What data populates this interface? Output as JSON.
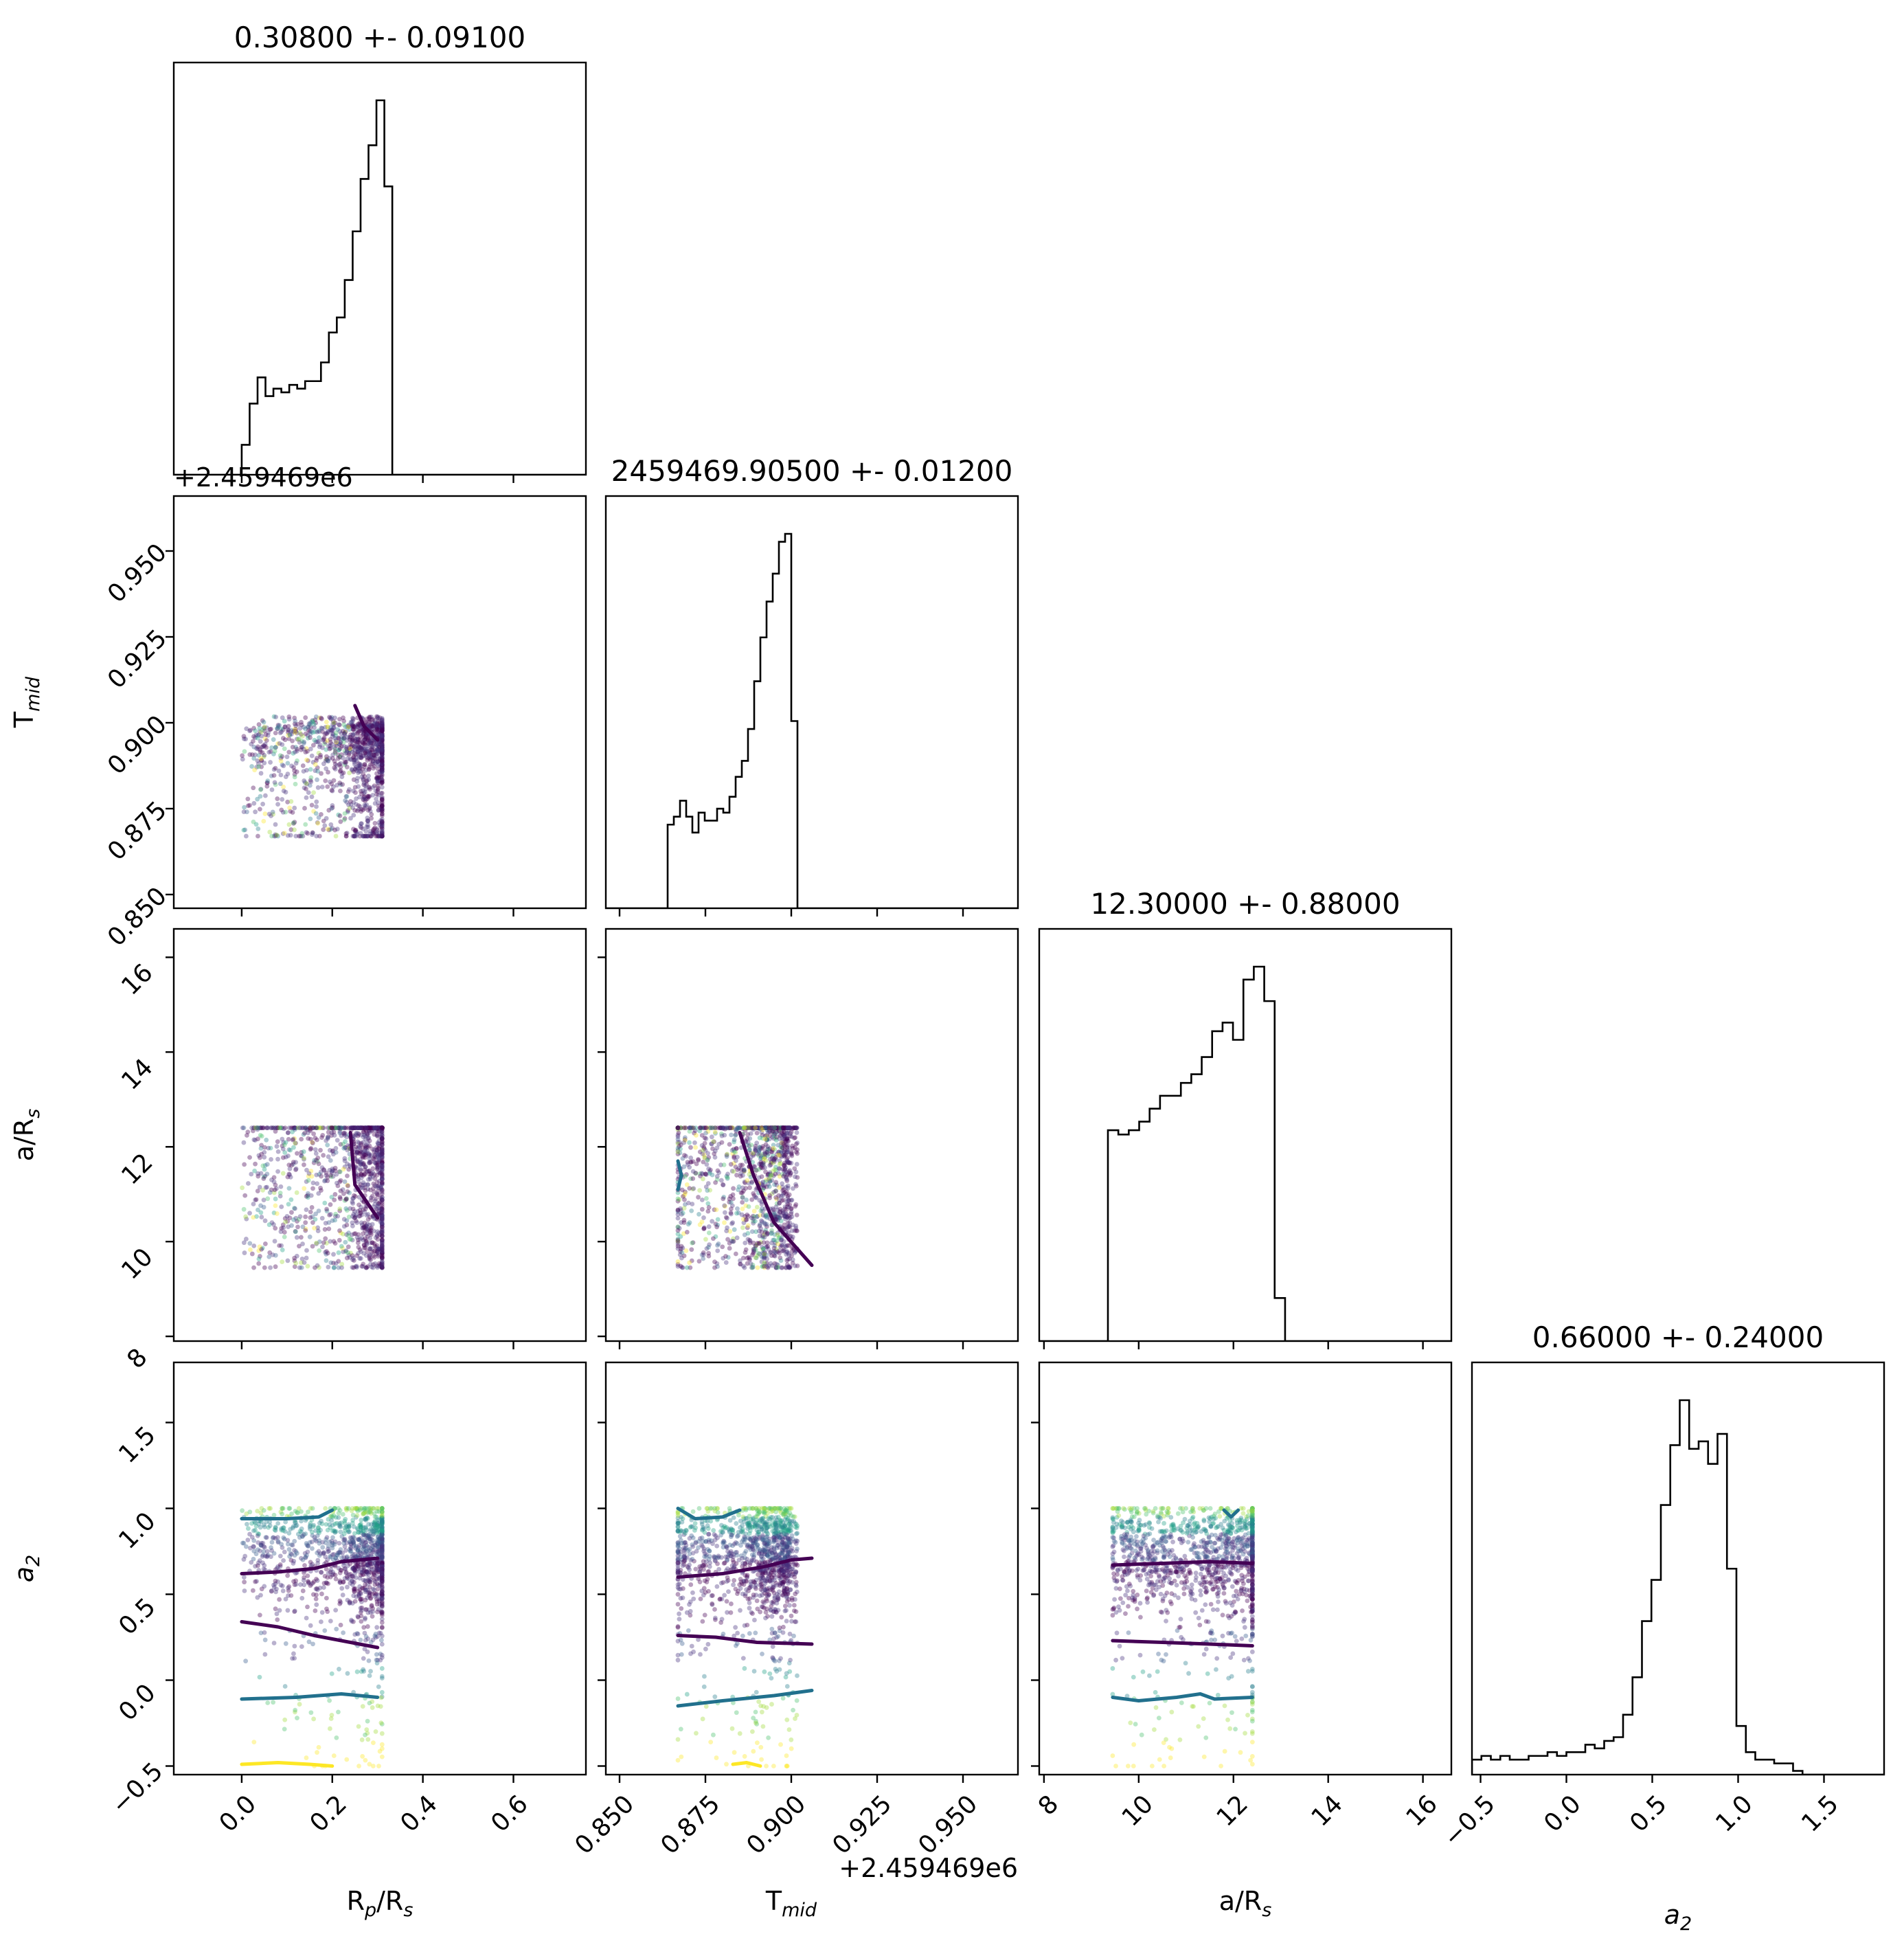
{
  "chart_data": {
    "type": "corner",
    "parameters": [
      {
        "label": "R",
        "label_sub": "p",
        "label_tail": "/R",
        "label_sub2": "s",
        "range": [
          -0.15,
          0.76
        ],
        "ticks": [
          0.0,
          0.2,
          0.4,
          0.6
        ],
        "tick_labels": [
          "0.0",
          "0.2",
          "0.4",
          "0.6"
        ]
      },
      {
        "label": "T",
        "label_sub": "mid",
        "label_tail": "",
        "label_sub2": "",
        "range": [
          0.846,
          0.966
        ],
        "ticks": [
          0.85,
          0.875,
          0.9,
          0.925,
          0.95
        ],
        "tick_labels": [
          "0.850",
          "0.875",
          "0.900",
          "0.925",
          "0.950"
        ],
        "offset_text": "+2.459469e6"
      },
      {
        "label": "a/R",
        "label_sub": "s",
        "label_tail": "",
        "label_sub2": "",
        "range": [
          7.9,
          16.6
        ],
        "ticks": [
          8,
          10,
          12,
          14,
          16
        ],
        "tick_labels": [
          "8",
          "10",
          "12",
          "14",
          "16"
        ]
      },
      {
        "label": "a",
        "label_sub": "2",
        "label_tail": "",
        "label_sub2": "",
        "italic": true,
        "range": [
          -0.55,
          1.85
        ],
        "ticks": [
          -0.5,
          0.0,
          0.5,
          1.0,
          1.5
        ],
        "tick_labels": [
          "−0.5",
          "0.0",
          "0.5",
          "1.0",
          "1.5"
        ]
      }
    ],
    "titles": [
      "0.30800 +- 0.09100",
      "2459469.90500 +- 0.01200",
      "12.30000 +- 0.88000",
      "0.66000 +- 0.24000"
    ],
    "histograms": [
      {
        "param": 0,
        "bin_width": 0.0175,
        "bins_start": -0.0175,
        "counts": [
          0,
          0.08,
          0.19,
          0.26,
          0.21,
          0.23,
          0.22,
          0.24,
          0.23,
          0.25,
          0.25,
          0.3,
          0.38,
          0.42,
          0.52,
          0.65,
          0.79,
          0.88,
          1.0,
          0.77,
          0
        ]
      },
      {
        "param": 1,
        "bin_width": 0.0018,
        "bins_start": 0.864,
        "counts": [
          0.21,
          0.23,
          0.27,
          0.23,
          0.19,
          0.24,
          0.22,
          0.22,
          0.25,
          0.24,
          0.28,
          0.33,
          0.37,
          0.45,
          0.57,
          0.68,
          0.77,
          0.84,
          0.92,
          0.94,
          0.47
        ]
      },
      {
        "param": 2,
        "bin_width": 0.22,
        "bins_start": 9.35,
        "counts": [
          0.49,
          0.48,
          0.49,
          0.51,
          0.54,
          0.57,
          0.57,
          0.6,
          0.62,
          0.66,
          0.72,
          0.74,
          0.7,
          0.84,
          0.87,
          0.79,
          0.1
        ]
      },
      {
        "param": 3,
        "bin_width": 0.055,
        "bins_start": -0.55,
        "counts": [
          0.04,
          0.05,
          0.04,
          0.05,
          0.04,
          0.04,
          0.05,
          0.05,
          0.06,
          0.05,
          0.06,
          0.06,
          0.08,
          0.07,
          0.09,
          0.1,
          0.16,
          0.26,
          0.41,
          0.52,
          0.72,
          0.88,
          1.0,
          0.87,
          0.89,
          0.83,
          0.91,
          0.55,
          0.13,
          0.06,
          0.04,
          0.04,
          0.03,
          0.03,
          0.01,
          0
        ]
      }
    ],
    "scatter": {
      "n_points": 1300,
      "ranges": [
        [
          0.0,
          0.31
        ],
        [
          0.867,
          0.906
        ],
        [
          9.45,
          12.4
        ],
        [
          -0.5,
          1.0
        ]
      ],
      "point_colors": [
        "#440154",
        "#46327e",
        "#365c8d",
        "#277f8e",
        "#1fa187",
        "#4ac16d",
        "#a0da39",
        "#fde725"
      ],
      "dense_color": "#440154"
    },
    "contours": [
      {
        "row": 3,
        "col": 0,
        "color": "#440154",
        "lines": [
          [
            [
              0.0,
              0.62
            ],
            [
              0.08,
              0.63
            ],
            [
              0.16,
              0.65
            ],
            [
              0.22,
              0.69
            ],
            [
              0.3,
              0.71
            ]
          ],
          [
            [
              0.0,
              0.34
            ],
            [
              0.08,
              0.31
            ],
            [
              0.16,
              0.26
            ],
            [
              0.24,
              0.22
            ],
            [
              0.3,
              0.19
            ]
          ]
        ]
      },
      {
        "row": 3,
        "col": 0,
        "color": "#21708d",
        "lines": [
          [
            [
              0.0,
              0.94
            ],
            [
              0.1,
              0.94
            ],
            [
              0.17,
              0.95
            ],
            [
              0.2,
              0.99
            ]
          ],
          [
            [
              0.0,
              -0.11
            ],
            [
              0.12,
              -0.1
            ],
            [
              0.22,
              -0.08
            ],
            [
              0.3,
              -0.1
            ]
          ]
        ]
      },
      {
        "row": 3,
        "col": 0,
        "color": "#fde725",
        "lines": [
          [
            [
              0.0,
              -0.49
            ],
            [
              0.08,
              -0.48
            ],
            [
              0.15,
              -0.49
            ],
            [
              0.2,
              -0.5
            ]
          ]
        ]
      },
      {
        "row": 3,
        "col": 1,
        "color": "#440154",
        "lines": [
          [
            [
              0.867,
              0.6
            ],
            [
              0.88,
              0.62
            ],
            [
              0.892,
              0.66
            ],
            [
              0.9,
              0.7
            ],
            [
              0.906,
              0.71
            ]
          ],
          [
            [
              0.867,
              0.26
            ],
            [
              0.878,
              0.25
            ],
            [
              0.89,
              0.22
            ],
            [
              0.906,
              0.21
            ]
          ]
        ]
      },
      {
        "row": 3,
        "col": 1,
        "color": "#21708d",
        "lines": [
          [
            [
              0.867,
              1.0
            ],
            [
              0.872,
              0.94
            ],
            [
              0.88,
              0.95
            ],
            [
              0.885,
              0.99
            ]
          ],
          [
            [
              0.867,
              -0.15
            ],
            [
              0.88,
              -0.12
            ],
            [
              0.895,
              -0.09
            ],
            [
              0.906,
              -0.06
            ]
          ]
        ]
      },
      {
        "row": 3,
        "col": 1,
        "color": "#fde725",
        "lines": [
          [
            [
              0.883,
              -0.49
            ],
            [
              0.887,
              -0.48
            ],
            [
              0.891,
              -0.5
            ]
          ]
        ]
      },
      {
        "row": 3,
        "col": 2,
        "color": "#440154",
        "lines": [
          [
            [
              9.45,
              0.67
            ],
            [
              10.5,
              0.68
            ],
            [
              11.5,
              0.69
            ],
            [
              12.4,
              0.68
            ]
          ],
          [
            [
              9.45,
              0.23
            ],
            [
              10.5,
              0.22
            ],
            [
              11.5,
              0.21
            ],
            [
              12.4,
              0.2
            ]
          ]
        ]
      },
      {
        "row": 3,
        "col": 2,
        "color": "#21708d",
        "lines": [
          [
            [
              9.45,
              -0.1
            ],
            [
              10.0,
              -0.12
            ],
            [
              10.8,
              -0.1
            ],
            [
              11.3,
              -0.08
            ],
            [
              11.6,
              -0.11
            ],
            [
              12.4,
              -0.1
            ]
          ],
          [
            [
              11.8,
              0.99
            ],
            [
              11.95,
              0.95
            ],
            [
              12.1,
              0.99
            ]
          ]
        ]
      },
      {
        "row": 2,
        "col": 1,
        "color": "#21708d",
        "lines": [
          [
            [
              0.867,
              11.7
            ],
            [
              0.868,
              11.4
            ],
            [
              0.867,
              11.1
            ]
          ]
        ]
      },
      {
        "row": 2,
        "col": 1,
        "color": "#440154",
        "lines": [
          [
            [
              0.885,
              12.3
            ],
            [
              0.889,
              11.4
            ],
            [
              0.895,
              10.4
            ],
            [
              0.906,
              9.5
            ]
          ]
        ]
      },
      {
        "row": 2,
        "col": 0,
        "color": "#440154",
        "lines": [
          [
            [
              0.24,
              12.3
            ],
            [
              0.25,
              11.2
            ],
            [
              0.3,
              10.5
            ]
          ]
        ]
      },
      {
        "row": 1,
        "col": 0,
        "color": "#440154",
        "lines": [
          [
            [
              0.25,
              0.905
            ],
            [
              0.27,
              0.899
            ],
            [
              0.3,
              0.895
            ]
          ]
        ]
      }
    ]
  }
}
